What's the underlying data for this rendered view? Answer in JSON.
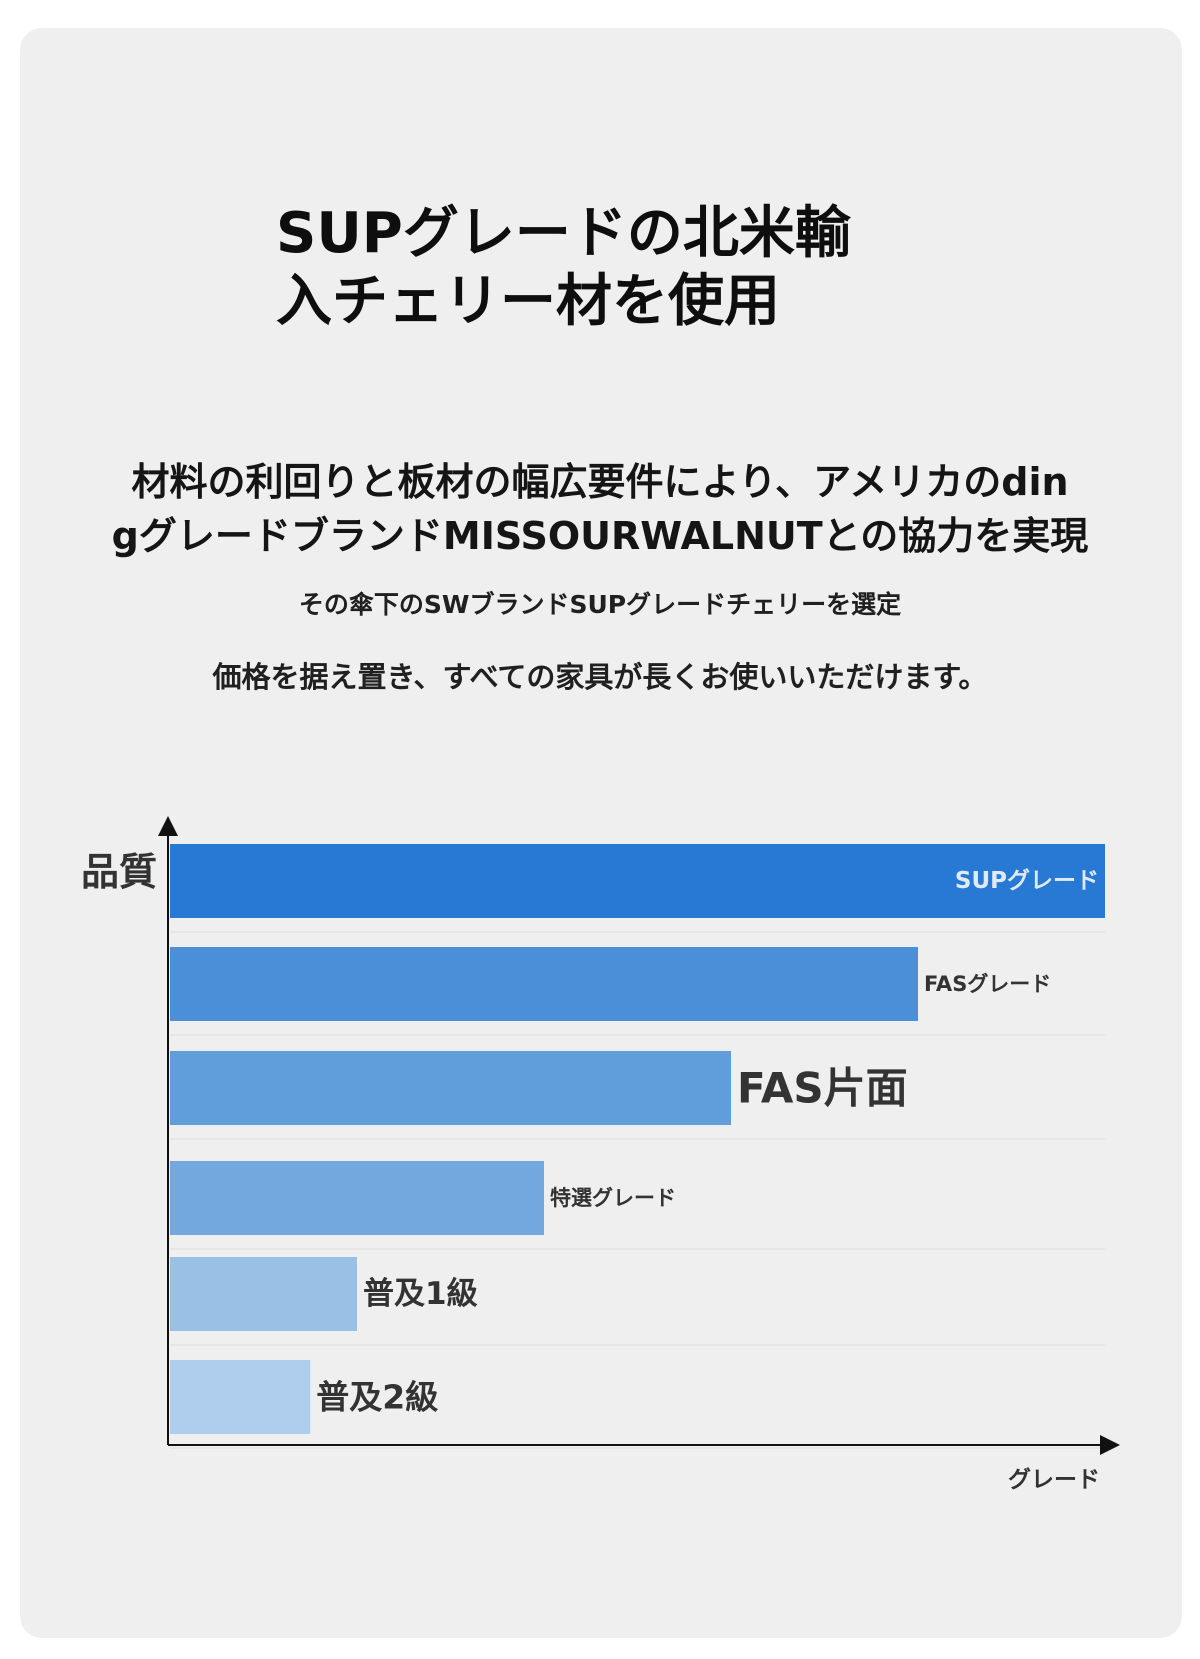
{
  "title": {
    "line1": "SUPグレードの北米輸",
    "line2": "入チェリー材を使用"
  },
  "subtitle": {
    "line1": "材料の利回りと板材の幅広要件により、アメリカのdin",
    "line2": "gグレードブランドMISSOURWALNUTとの協力を実現"
  },
  "notes": {
    "line1": "その傘下のSWブランドSUPグレードチェリーを選定",
    "line2": "価格を据え置き、すべての家具が長くお使いいただけます。"
  },
  "chart_data": {
    "type": "bar",
    "orientation": "horizontal",
    "ylabel": "品質",
    "xlabel": "グレード",
    "categories": [
      "SUPグレード",
      "FASグレード",
      "FAS片面",
      "特選グレード",
      "普及1級",
      "普及2級"
    ],
    "values": [
      100,
      80,
      60,
      40,
      20,
      15
    ],
    "xlim": [
      0,
      100
    ],
    "value_axis_labels": false,
    "grid": true,
    "colors": [
      "#2879d3",
      "#4a8fd8",
      "#5f9ddb",
      "#72a8de",
      "#9bc0e6",
      "#afcdec"
    ]
  }
}
